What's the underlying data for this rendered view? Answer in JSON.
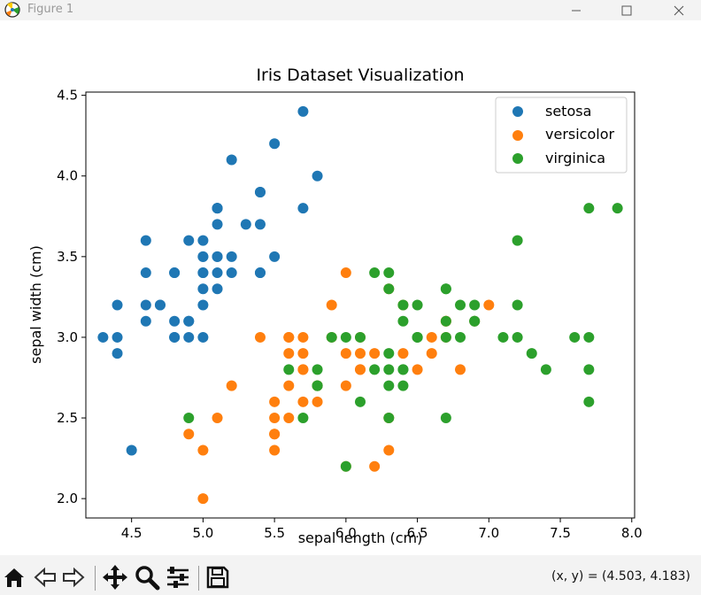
{
  "window": {
    "title": "Figure 1"
  },
  "toolbar": {
    "coords": "(x, y) = (4.503, 4.183)",
    "buttons": [
      "home-icon",
      "back-icon",
      "forward-icon",
      "pan-icon",
      "zoom-icon",
      "configure-subplots-icon",
      "save-icon"
    ]
  },
  "chart_data": {
    "type": "scatter",
    "title": "Iris Dataset Visualization",
    "xlabel": "sepal length (cm)",
    "ylabel": "sepal width (cm)",
    "xlim": [
      4.18,
      8.02
    ],
    "ylim": [
      1.88,
      4.52
    ],
    "xticks": [
      "4.5",
      "5.0",
      "5.5",
      "6.0",
      "6.5",
      "7.0",
      "7.5",
      "8.0"
    ],
    "yticks": [
      "2.0",
      "2.5",
      "3.0",
      "3.5",
      "4.0",
      "4.5"
    ],
    "legend_position": "top-right",
    "series": [
      {
        "name": "setosa",
        "color": "#1f77b4",
        "x": [
          5.1,
          4.9,
          4.7,
          4.6,
          5.0,
          5.4,
          4.6,
          5.0,
          4.4,
          4.9,
          5.4,
          4.8,
          4.8,
          4.3,
          5.8,
          5.7,
          5.4,
          5.1,
          5.7,
          5.1,
          5.4,
          5.1,
          4.6,
          5.1,
          4.8,
          5.0,
          5.0,
          5.2,
          5.2,
          4.7,
          4.8,
          5.4,
          5.2,
          5.5,
          4.9,
          5.0,
          5.5,
          4.9,
          4.4,
          5.1,
          5.0,
          4.5,
          4.4,
          5.0,
          5.1,
          4.8,
          5.1,
          4.6,
          5.3,
          5.0
        ],
        "y": [
          3.5,
          3.0,
          3.2,
          3.1,
          3.6,
          3.9,
          3.4,
          3.4,
          2.9,
          3.1,
          3.7,
          3.4,
          3.0,
          3.0,
          4.0,
          4.4,
          3.9,
          3.5,
          3.8,
          3.8,
          3.4,
          3.7,
          3.6,
          3.3,
          3.4,
          3.0,
          3.4,
          3.5,
          3.4,
          3.2,
          3.1,
          3.4,
          4.1,
          4.2,
          3.1,
          3.2,
          3.5,
          3.6,
          3.0,
          3.4,
          3.5,
          2.3,
          3.2,
          3.5,
          3.8,
          3.0,
          3.8,
          3.2,
          3.7,
          3.3
        ]
      },
      {
        "name": "versicolor",
        "color": "#ff7f0e",
        "x": [
          7.0,
          6.4,
          6.9,
          5.5,
          6.5,
          5.7,
          6.3,
          4.9,
          6.6,
          5.2,
          5.0,
          5.9,
          6.0,
          6.1,
          5.6,
          6.7,
          5.6,
          5.8,
          6.2,
          5.6,
          5.9,
          6.1,
          6.3,
          6.1,
          6.4,
          6.6,
          6.8,
          6.7,
          6.0,
          5.7,
          5.5,
          5.5,
          5.8,
          6.0,
          5.4,
          6.0,
          6.7,
          6.3,
          5.6,
          5.5,
          5.5,
          6.1,
          5.8,
          5.0,
          5.6,
          5.7,
          5.7,
          6.2,
          5.1,
          5.7
        ],
        "y": [
          3.2,
          3.2,
          3.1,
          2.3,
          2.8,
          2.8,
          3.3,
          2.4,
          2.9,
          2.7,
          2.0,
          3.0,
          2.2,
          2.9,
          2.9,
          3.1,
          3.0,
          2.7,
          2.2,
          2.5,
          3.2,
          2.8,
          2.5,
          2.8,
          2.9,
          3.0,
          2.8,
          3.0,
          2.9,
          2.6,
          2.4,
          2.4,
          2.7,
          2.7,
          3.0,
          3.4,
          3.1,
          2.3,
          3.0,
          2.5,
          2.6,
          3.0,
          2.6,
          2.3,
          2.7,
          3.0,
          2.9,
          2.9,
          2.5,
          2.8
        ]
      },
      {
        "name": "virginica",
        "color": "#2ca02c",
        "x": [
          6.3,
          5.8,
          7.1,
          6.3,
          6.5,
          7.6,
          4.9,
          7.3,
          6.7,
          7.2,
          6.5,
          6.4,
          6.8,
          5.7,
          5.8,
          6.4,
          6.5,
          7.7,
          7.7,
          6.0,
          6.9,
          5.6,
          7.7,
          6.3,
          6.7,
          7.2,
          6.2,
          6.1,
          6.4,
          7.2,
          7.4,
          7.9,
          6.4,
          6.3,
          6.1,
          7.7,
          6.3,
          6.4,
          6.0,
          6.9,
          6.7,
          6.9,
          5.8,
          6.8,
          6.7,
          6.7,
          6.3,
          6.5,
          6.2,
          5.9
        ],
        "y": [
          3.3,
          2.7,
          3.0,
          2.9,
          3.0,
          3.0,
          2.5,
          2.9,
          2.5,
          3.6,
          3.2,
          2.7,
          3.0,
          2.5,
          2.8,
          3.2,
          3.0,
          3.8,
          2.6,
          2.2,
          3.2,
          2.8,
          2.8,
          2.7,
          3.3,
          3.2,
          2.8,
          3.0,
          2.8,
          3.0,
          2.8,
          3.8,
          2.8,
          2.8,
          2.6,
          3.0,
          3.4,
          3.1,
          3.0,
          3.1,
          3.1,
          3.1,
          2.7,
          3.2,
          3.3,
          3.0,
          2.5,
          3.0,
          3.4,
          3.0
        ]
      }
    ]
  }
}
